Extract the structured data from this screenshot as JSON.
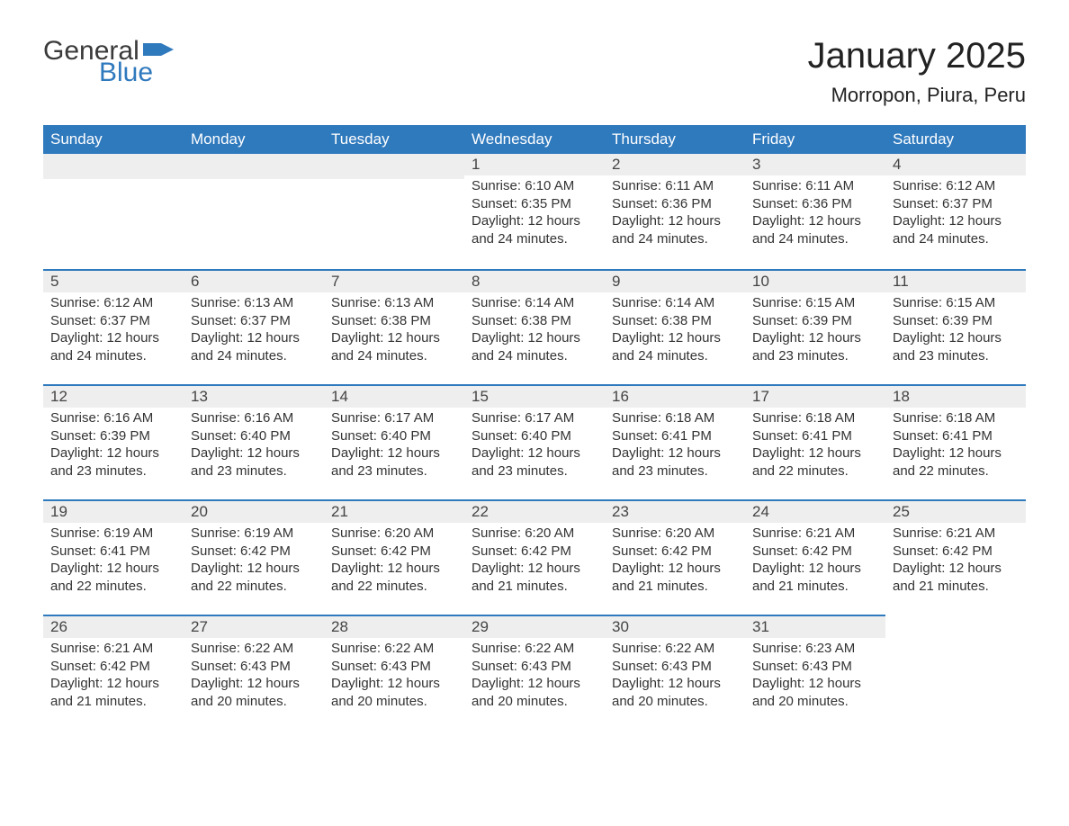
{
  "brand": {
    "part1": "General",
    "part2": "Blue"
  },
  "title": "January 2025",
  "location": "Morropon, Piura, Peru",
  "colors": {
    "header_bg": "#2f79bd",
    "header_text": "#ffffff",
    "day_bar_bg": "#eeeeee",
    "day_bar_border": "#2f79bd",
    "body_text": "#333333",
    "page_bg": "#ffffff"
  },
  "weekdays": [
    "Sunday",
    "Monday",
    "Tuesday",
    "Wednesday",
    "Thursday",
    "Friday",
    "Saturday"
  ],
  "weeks": [
    [
      null,
      null,
      null,
      {
        "n": "1",
        "sunrise": "Sunrise: 6:10 AM",
        "sunset": "Sunset: 6:35 PM",
        "daylight": "Daylight: 12 hours and 24 minutes."
      },
      {
        "n": "2",
        "sunrise": "Sunrise: 6:11 AM",
        "sunset": "Sunset: 6:36 PM",
        "daylight": "Daylight: 12 hours and 24 minutes."
      },
      {
        "n": "3",
        "sunrise": "Sunrise: 6:11 AM",
        "sunset": "Sunset: 6:36 PM",
        "daylight": "Daylight: 12 hours and 24 minutes."
      },
      {
        "n": "4",
        "sunrise": "Sunrise: 6:12 AM",
        "sunset": "Sunset: 6:37 PM",
        "daylight": "Daylight: 12 hours and 24 minutes."
      }
    ],
    [
      {
        "n": "5",
        "sunrise": "Sunrise: 6:12 AM",
        "sunset": "Sunset: 6:37 PM",
        "daylight": "Daylight: 12 hours and 24 minutes."
      },
      {
        "n": "6",
        "sunrise": "Sunrise: 6:13 AM",
        "sunset": "Sunset: 6:37 PM",
        "daylight": "Daylight: 12 hours and 24 minutes."
      },
      {
        "n": "7",
        "sunrise": "Sunrise: 6:13 AM",
        "sunset": "Sunset: 6:38 PM",
        "daylight": "Daylight: 12 hours and 24 minutes."
      },
      {
        "n": "8",
        "sunrise": "Sunrise: 6:14 AM",
        "sunset": "Sunset: 6:38 PM",
        "daylight": "Daylight: 12 hours and 24 minutes."
      },
      {
        "n": "9",
        "sunrise": "Sunrise: 6:14 AM",
        "sunset": "Sunset: 6:38 PM",
        "daylight": "Daylight: 12 hours and 24 minutes."
      },
      {
        "n": "10",
        "sunrise": "Sunrise: 6:15 AM",
        "sunset": "Sunset: 6:39 PM",
        "daylight": "Daylight: 12 hours and 23 minutes."
      },
      {
        "n": "11",
        "sunrise": "Sunrise: 6:15 AM",
        "sunset": "Sunset: 6:39 PM",
        "daylight": "Daylight: 12 hours and 23 minutes."
      }
    ],
    [
      {
        "n": "12",
        "sunrise": "Sunrise: 6:16 AM",
        "sunset": "Sunset: 6:39 PM",
        "daylight": "Daylight: 12 hours and 23 minutes."
      },
      {
        "n": "13",
        "sunrise": "Sunrise: 6:16 AM",
        "sunset": "Sunset: 6:40 PM",
        "daylight": "Daylight: 12 hours and 23 minutes."
      },
      {
        "n": "14",
        "sunrise": "Sunrise: 6:17 AM",
        "sunset": "Sunset: 6:40 PM",
        "daylight": "Daylight: 12 hours and 23 minutes."
      },
      {
        "n": "15",
        "sunrise": "Sunrise: 6:17 AM",
        "sunset": "Sunset: 6:40 PM",
        "daylight": "Daylight: 12 hours and 23 minutes."
      },
      {
        "n": "16",
        "sunrise": "Sunrise: 6:18 AM",
        "sunset": "Sunset: 6:41 PM",
        "daylight": "Daylight: 12 hours and 23 minutes."
      },
      {
        "n": "17",
        "sunrise": "Sunrise: 6:18 AM",
        "sunset": "Sunset: 6:41 PM",
        "daylight": "Daylight: 12 hours and 22 minutes."
      },
      {
        "n": "18",
        "sunrise": "Sunrise: 6:18 AM",
        "sunset": "Sunset: 6:41 PM",
        "daylight": "Daylight: 12 hours and 22 minutes."
      }
    ],
    [
      {
        "n": "19",
        "sunrise": "Sunrise: 6:19 AM",
        "sunset": "Sunset: 6:41 PM",
        "daylight": "Daylight: 12 hours and 22 minutes."
      },
      {
        "n": "20",
        "sunrise": "Sunrise: 6:19 AM",
        "sunset": "Sunset: 6:42 PM",
        "daylight": "Daylight: 12 hours and 22 minutes."
      },
      {
        "n": "21",
        "sunrise": "Sunrise: 6:20 AM",
        "sunset": "Sunset: 6:42 PM",
        "daylight": "Daylight: 12 hours and 22 minutes."
      },
      {
        "n": "22",
        "sunrise": "Sunrise: 6:20 AM",
        "sunset": "Sunset: 6:42 PM",
        "daylight": "Daylight: 12 hours and 21 minutes."
      },
      {
        "n": "23",
        "sunrise": "Sunrise: 6:20 AM",
        "sunset": "Sunset: 6:42 PM",
        "daylight": "Daylight: 12 hours and 21 minutes."
      },
      {
        "n": "24",
        "sunrise": "Sunrise: 6:21 AM",
        "sunset": "Sunset: 6:42 PM",
        "daylight": "Daylight: 12 hours and 21 minutes."
      },
      {
        "n": "25",
        "sunrise": "Sunrise: 6:21 AM",
        "sunset": "Sunset: 6:42 PM",
        "daylight": "Daylight: 12 hours and 21 minutes."
      }
    ],
    [
      {
        "n": "26",
        "sunrise": "Sunrise: 6:21 AM",
        "sunset": "Sunset: 6:42 PM",
        "daylight": "Daylight: 12 hours and 21 minutes."
      },
      {
        "n": "27",
        "sunrise": "Sunrise: 6:22 AM",
        "sunset": "Sunset: 6:43 PM",
        "daylight": "Daylight: 12 hours and 20 minutes."
      },
      {
        "n": "28",
        "sunrise": "Sunrise: 6:22 AM",
        "sunset": "Sunset: 6:43 PM",
        "daylight": "Daylight: 12 hours and 20 minutes."
      },
      {
        "n": "29",
        "sunrise": "Sunrise: 6:22 AM",
        "sunset": "Sunset: 6:43 PM",
        "daylight": "Daylight: 12 hours and 20 minutes."
      },
      {
        "n": "30",
        "sunrise": "Sunrise: 6:22 AM",
        "sunset": "Sunset: 6:43 PM",
        "daylight": "Daylight: 12 hours and 20 minutes."
      },
      {
        "n": "31",
        "sunrise": "Sunrise: 6:23 AM",
        "sunset": "Sunset: 6:43 PM",
        "daylight": "Daylight: 12 hours and 20 minutes."
      },
      null
    ]
  ]
}
